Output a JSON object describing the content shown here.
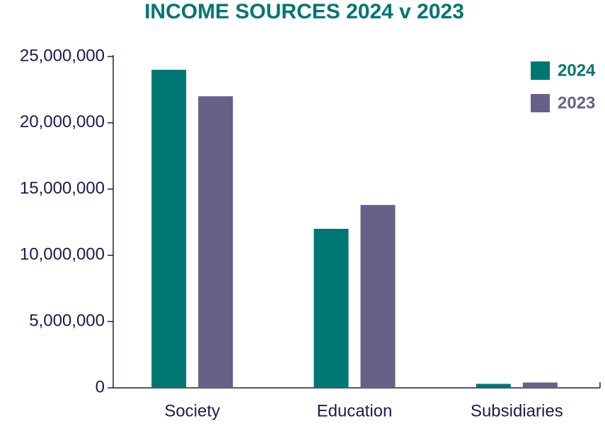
{
  "chart_data": {
    "type": "bar",
    "title": "INCOME SOURCES 2024 v 2023",
    "categories": [
      "Society",
      "Education",
      "Subsidiaries"
    ],
    "series": [
      {
        "name": "2024",
        "color": "#007672",
        "values": [
          24000000,
          12000000,
          300000
        ]
      },
      {
        "name": "2023",
        "color": "#686087",
        "values": [
          22000000,
          13800000,
          400000
        ]
      }
    ],
    "ylim": [
      0,
      25000000
    ],
    "yticks": [
      0,
      {
        "value": 5000000,
        "label": "5,000,000"
      },
      {
        "value": 10000000,
        "label": "10,000,000"
      },
      {
        "value": 15000000,
        "label": "15,000,000"
      },
      {
        "value": 20000000,
        "label": "20,000,000"
      },
      {
        "value": 25000000,
        "label": "25,000,000"
      }
    ],
    "legend": "top-right"
  }
}
